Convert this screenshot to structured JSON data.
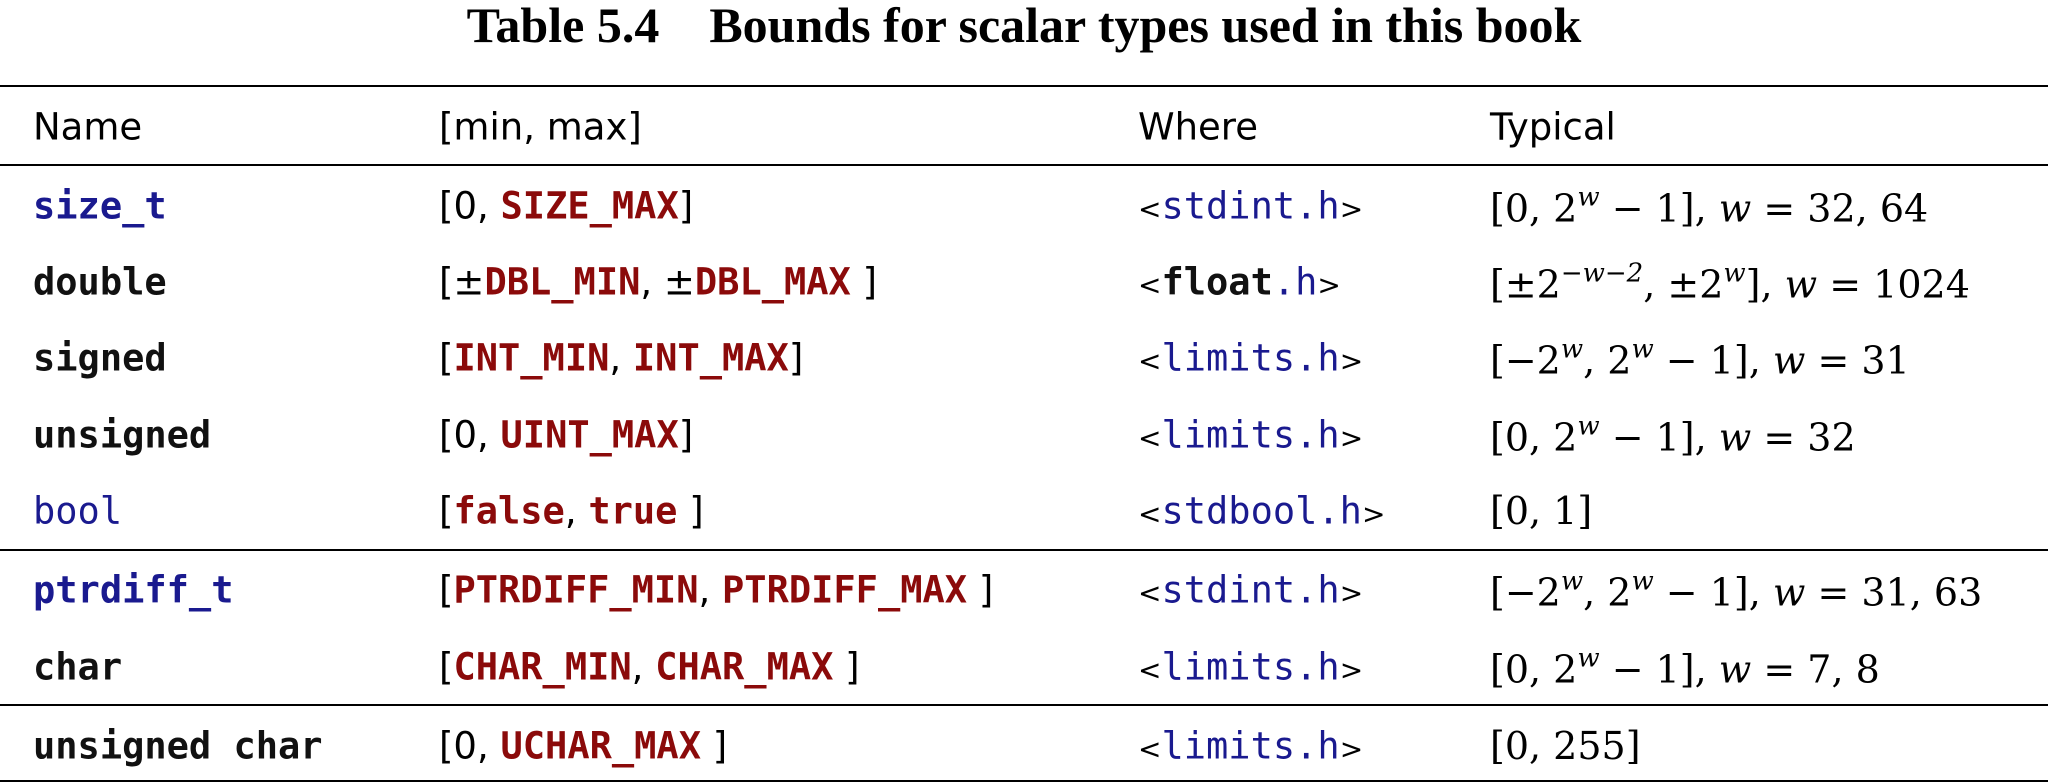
{
  "header": {
    "title": "Table 5.4    Bounds for scalar types used in this book"
  },
  "table": {
    "columns": [
      "Name",
      "[min, max]",
      "Where",
      "Typical"
    ],
    "rows": [
      [
        "size_t",
        [
          "[",
          "0",
          ", ",
          "SIZE_MAX",
          "]"
        ],
        [
          "<",
          "stdint",
          ".h",
          ">"
        ],
        [
          "[0, 2",
          "w",
          " − 1], ",
          "w",
          " = 32, 64"
        ]
      ],
      [
        "double",
        [
          "[±",
          "DBL_MIN",
          ", ±",
          "DBL_MAX",
          " ]"
        ],
        [
          "<",
          "float",
          ".h",
          ">"
        ],
        [
          "[±2",
          "−w−2",
          ", ±2",
          "w",
          "], ",
          "w",
          " = 1024"
        ]
      ],
      [
        "signed",
        [
          "[",
          "INT_MIN",
          ", ",
          "INT_MAX",
          "]"
        ],
        [
          "<",
          "limits",
          ".h",
          ">"
        ],
        [
          "[−2",
          "w",
          ", 2",
          "w",
          " − 1], ",
          "w",
          " = 31"
        ]
      ],
      [
        "unsigned",
        [
          "[",
          "0",
          ", ",
          "UINT_MAX",
          "]"
        ],
        [
          "<",
          "limits",
          ".h",
          ">"
        ],
        [
          "[0, 2",
          "w",
          " − 1], ",
          "w",
          " = 32"
        ]
      ],
      [
        "bool",
        [
          "[",
          "false",
          ", ",
          "true",
          " ]"
        ],
        [
          "<",
          "stdbool",
          ".h",
          ">"
        ],
        [
          "[0, 1]"
        ]
      ],
      [
        "ptrdiff_t",
        [
          "[",
          "PTRDIFF_MIN",
          ", ",
          "PTRDIFF_MAX",
          " ]"
        ],
        [
          "<",
          "stdint",
          ".h",
          ">"
        ],
        [
          "[−2",
          "w",
          ", 2",
          "w",
          " − 1], ",
          "w",
          " = 31, 63"
        ]
      ],
      [
        "char",
        [
          "[",
          "CHAR_MIN",
          ", ",
          "CHAR_MAX",
          " ]"
        ],
        [
          "<",
          "limits",
          ".h",
          ">"
        ],
        [
          "[0, 2",
          "w",
          " − 1], ",
          "w",
          " = 7, 8"
        ]
      ],
      [
        "unsigned char",
        [
          "[0, ",
          "UCHAR_MAX",
          " ]"
        ],
        [
          "<",
          "limits",
          ".h",
          ">"
        ],
        [
          "[0, 255]"
        ]
      ]
    ]
  }
}
